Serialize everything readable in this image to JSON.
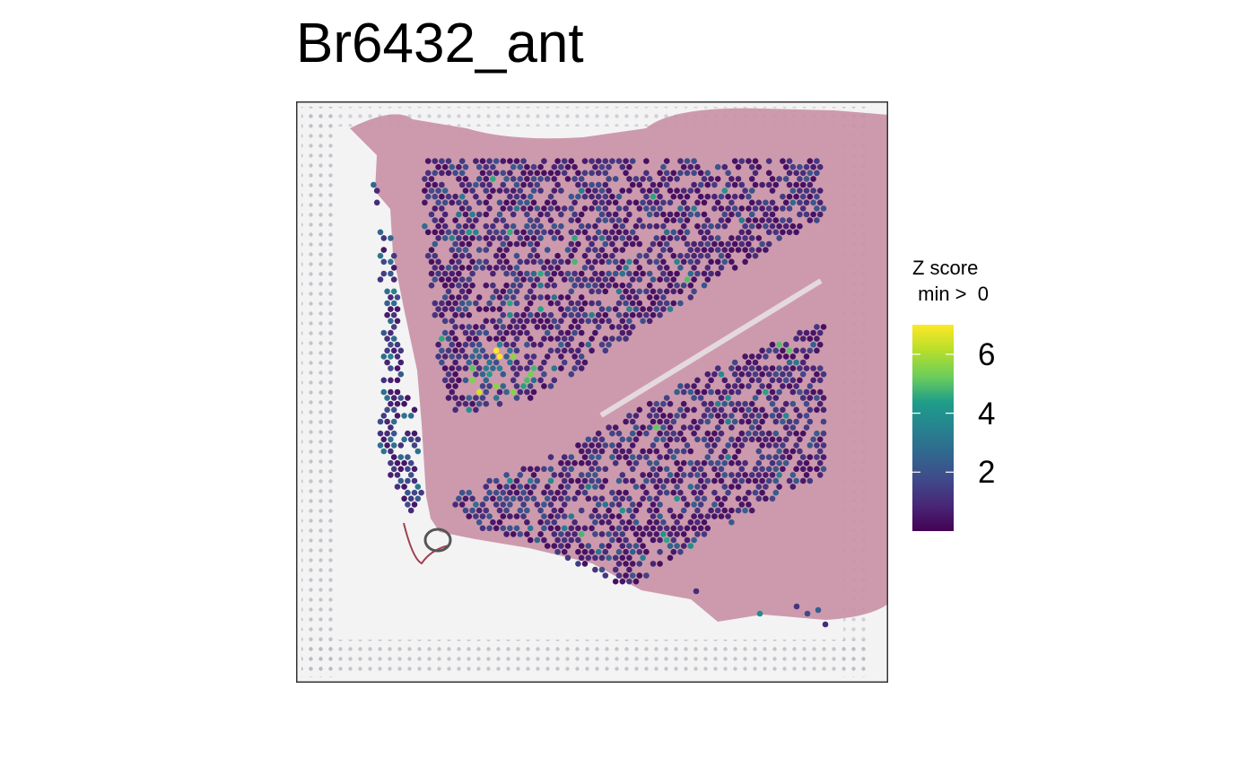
{
  "chart_data": {
    "type": "scatter",
    "subtype": "spatial-spot-map-over-tissue-image",
    "title": "Br6432_ant",
    "xlabel": "",
    "ylabel": "",
    "grid": false,
    "legend": {
      "title_line1": "Z score",
      "title_line2": " min >  0",
      "placement": "right",
      "colormap": "viridis",
      "range": [
        0,
        7
      ],
      "ticks": [
        {
          "value": 2,
          "label": "2"
        },
        {
          "value": 4,
          "label": "4"
        },
        {
          "value": 6,
          "label": "6"
        }
      ]
    },
    "colors": {
      "viridis": [
        "#440154",
        "#482777",
        "#3f4a8a",
        "#31678e",
        "#26838f",
        "#1f9d8a",
        "#6cce5a",
        "#b6de2b",
        "#fee825"
      ],
      "tissue": "#c990a5",
      "background": "#f2f2f2",
      "panel_border": "#333333"
    },
    "spot_regions_approx": [
      {
        "region": "upper band",
        "mean_z": 1.3
      },
      {
        "region": "lower band",
        "mean_z": 1.4
      },
      {
        "region": "left margin strip",
        "mean_z": 1.8
      },
      {
        "region": "upper band mid-left hotspot",
        "mean_z": 3.2,
        "max_z": 7.0
      }
    ]
  }
}
